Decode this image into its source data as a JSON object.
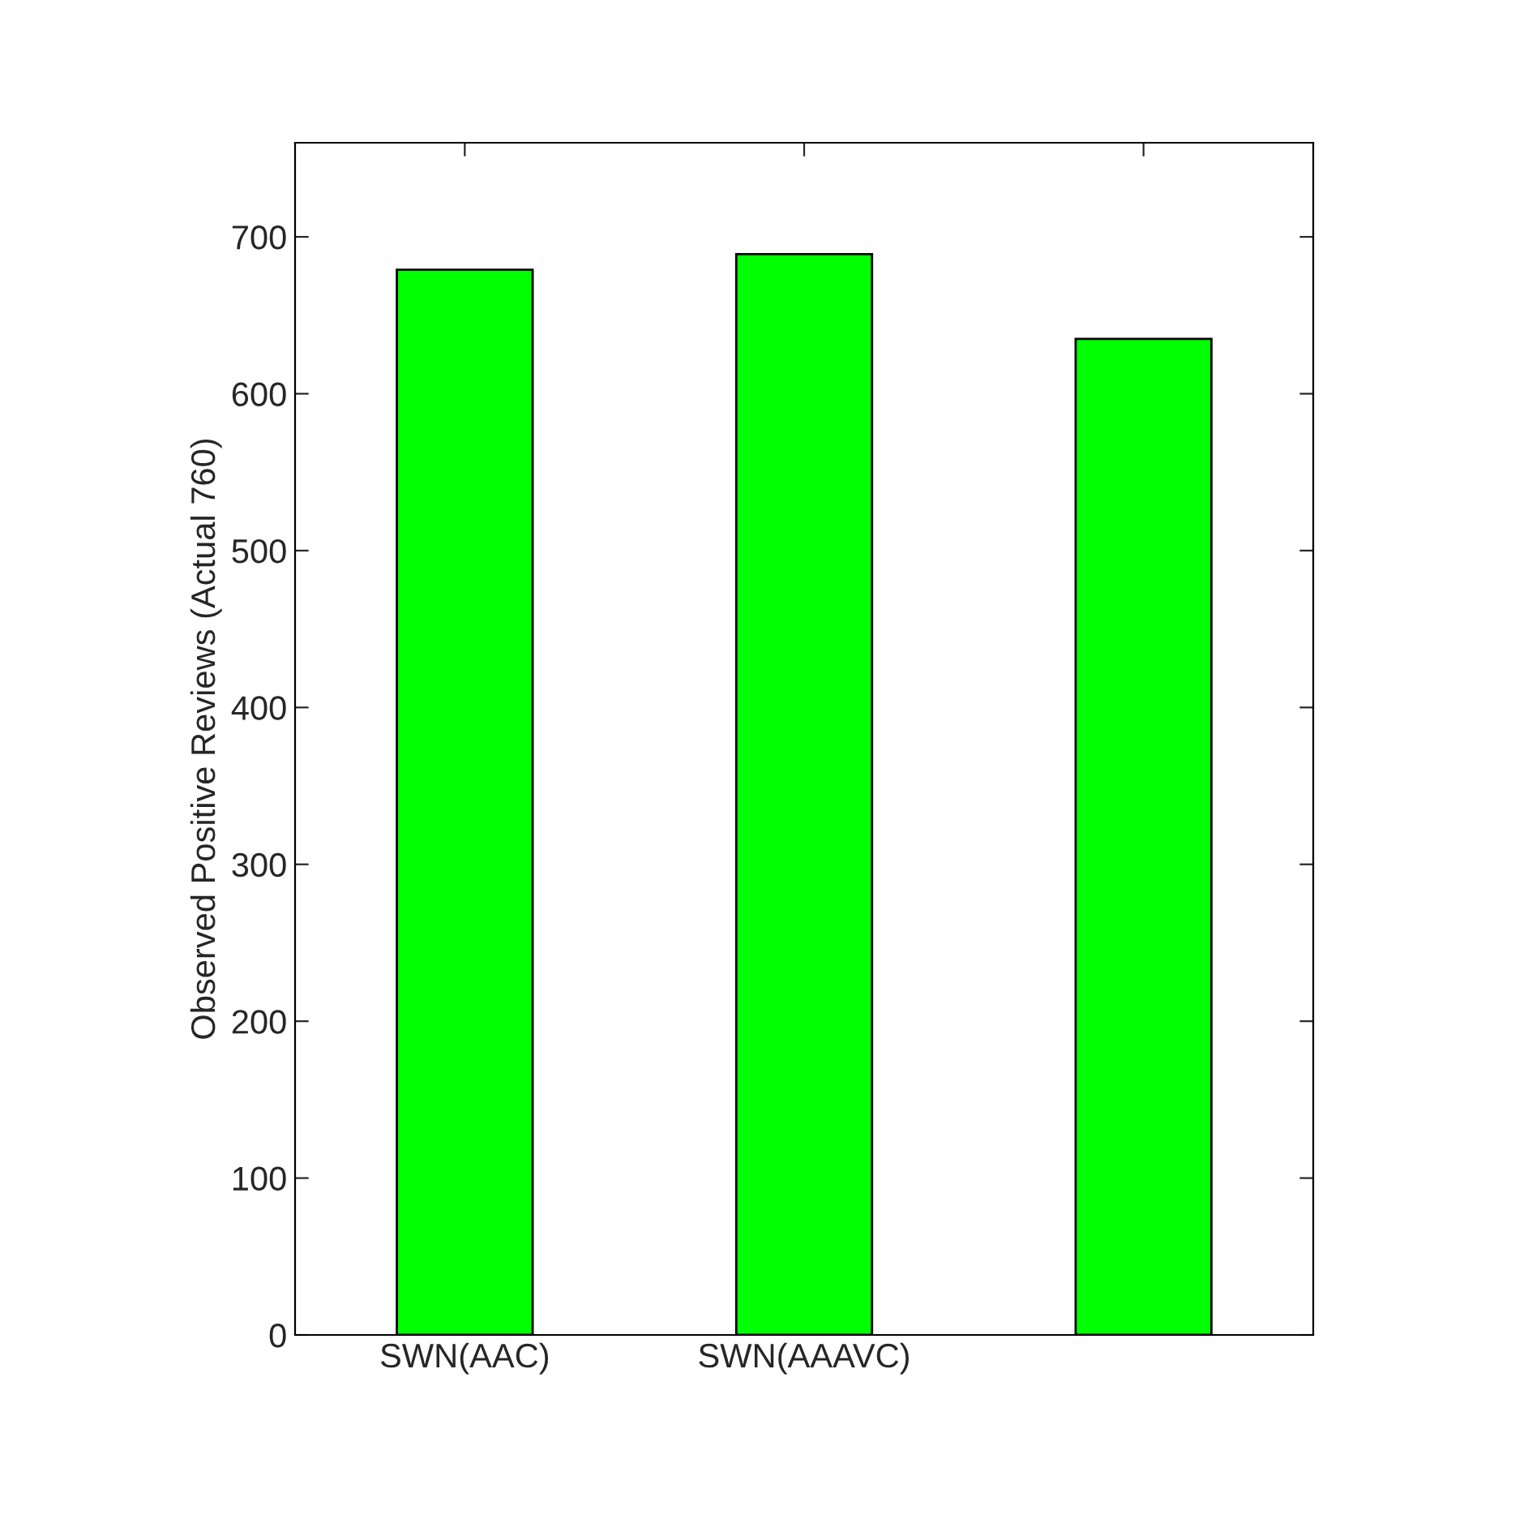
{
  "chart_data": {
    "type": "bar",
    "ylabel": "Observed Positive Reviews (Actual 760)",
    "categories": [
      "SWN(AAC)",
      "SWN(AAAVC)",
      null
    ],
    "values": [
      679,
      689,
      635
    ],
    "color": "#00ff00",
    "ylim": [
      0,
      760
    ],
    "yticks": [
      0,
      100,
      200,
      300,
      400,
      500,
      600,
      700
    ],
    "grid": false
  }
}
